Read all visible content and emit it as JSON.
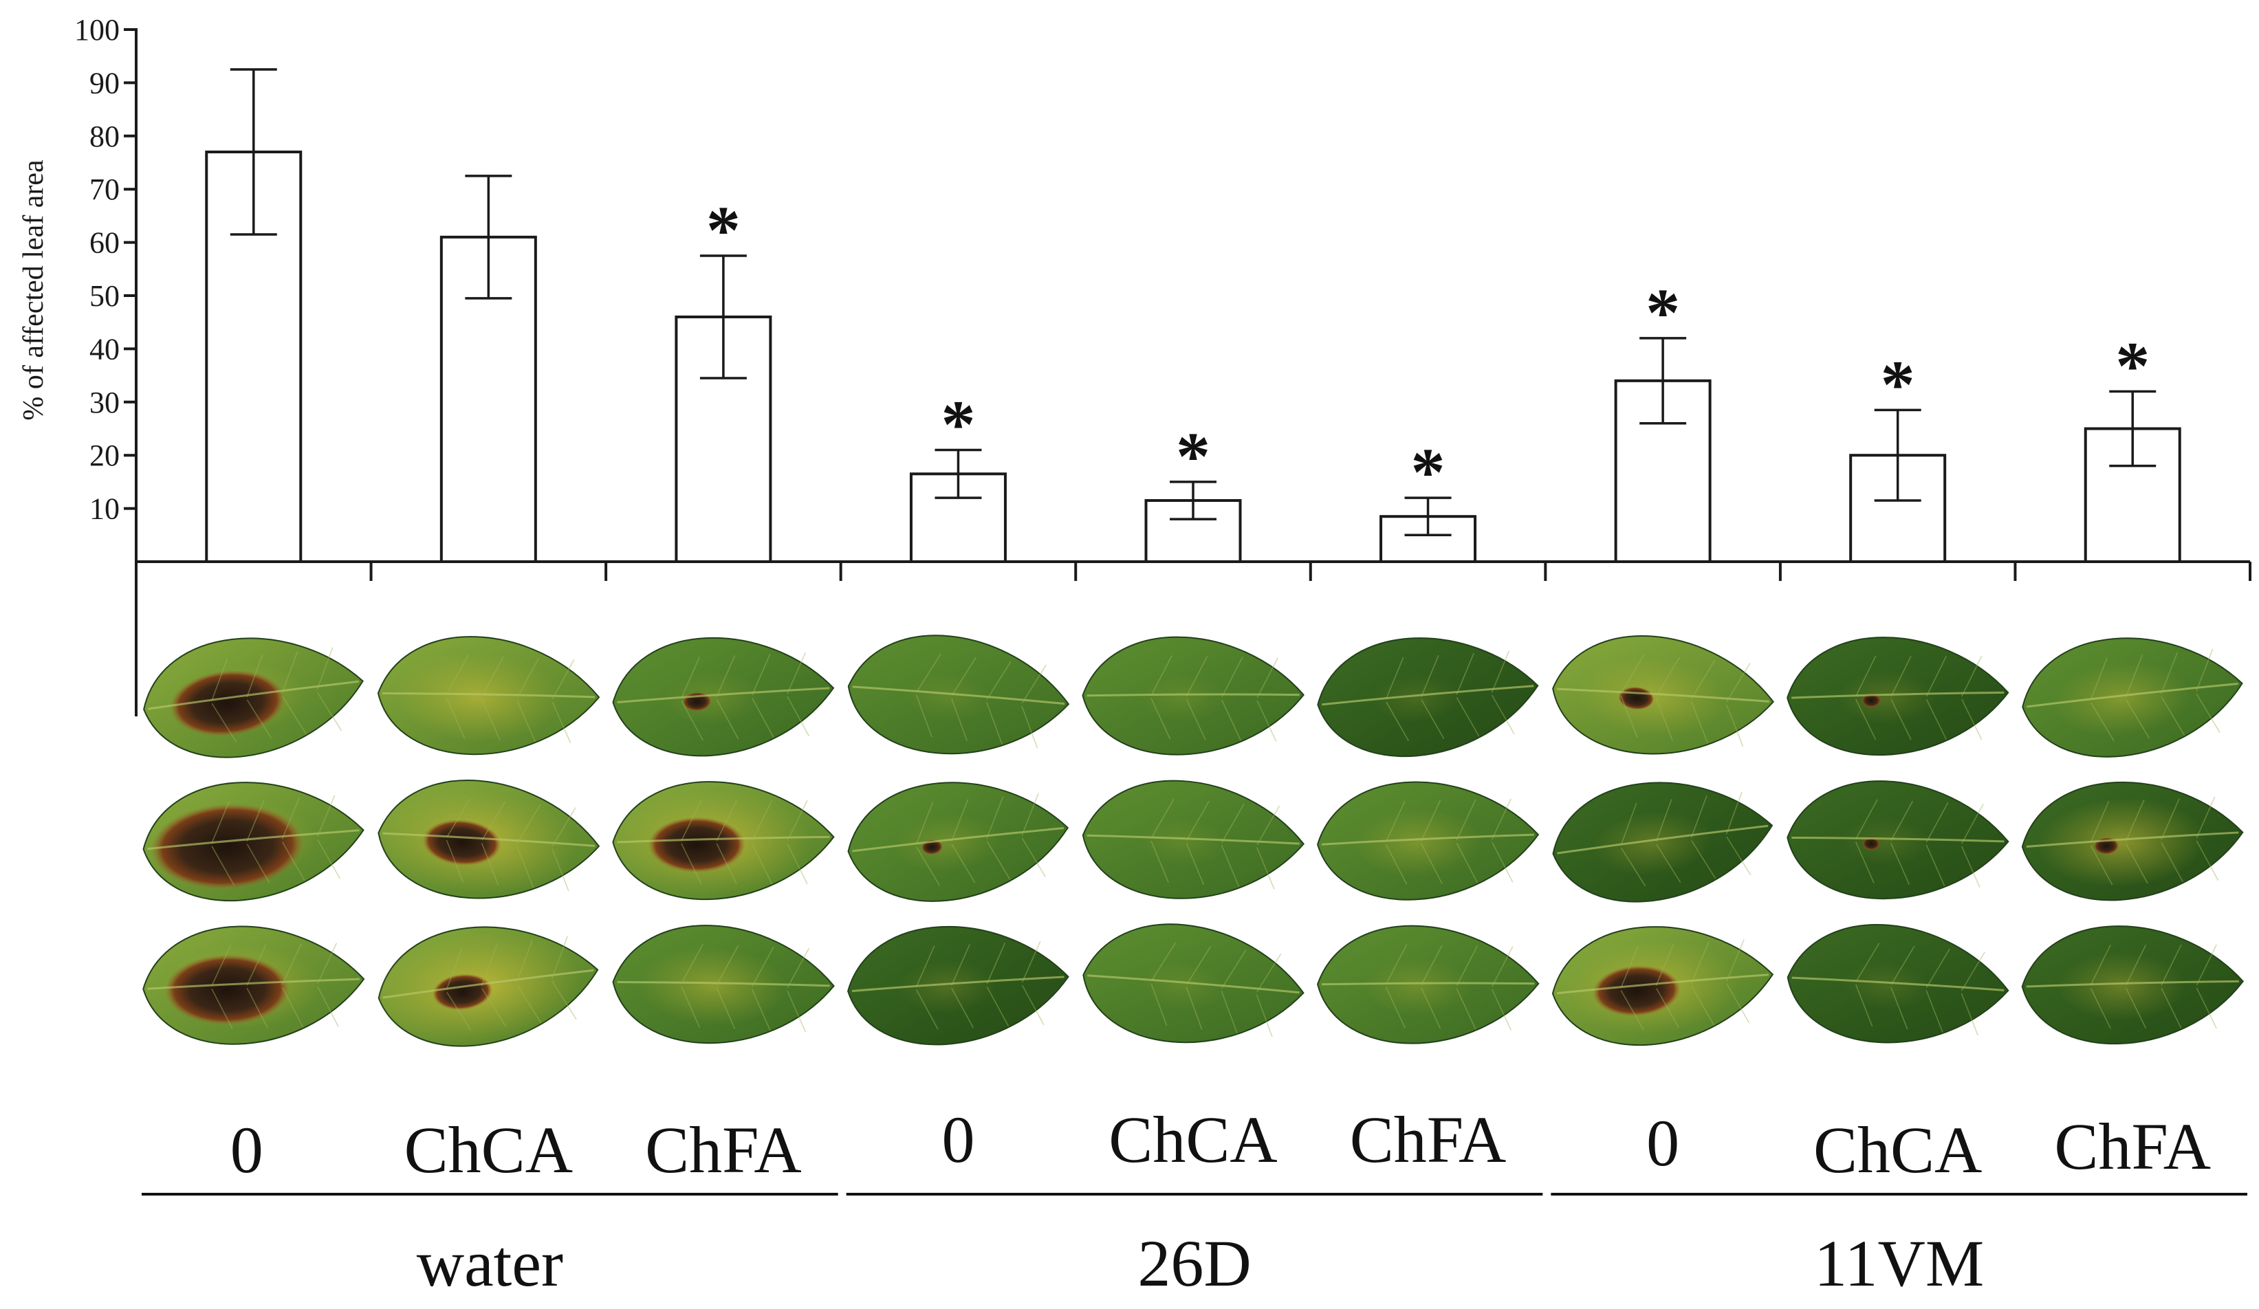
{
  "chart_data": {
    "type": "bar",
    "ylabel": "% of affected leaf area",
    "ylim": [
      0,
      100
    ],
    "yticks": [
      10,
      20,
      30,
      40,
      50,
      60,
      70,
      80,
      90,
      100
    ],
    "categories": [
      "0",
      "ChCA",
      "ChFA",
      "0",
      "ChCA",
      "ChFA",
      "0",
      "ChCA",
      "ChFA"
    ],
    "groups": [
      {
        "label": "water",
        "start": 0,
        "end": 2
      },
      {
        "label": "26D",
        "start": 3,
        "end": 5
      },
      {
        "label": "11VM",
        "start": 6,
        "end": 8
      }
    ],
    "values": [
      77,
      61,
      46,
      16.5,
      11.5,
      8.5,
      34,
      20,
      25
    ],
    "errors": [
      15.5,
      11.5,
      11.5,
      4.5,
      3.5,
      3.5,
      8,
      8.5,
      7
    ],
    "significance": [
      "",
      "",
      "*",
      "*",
      "*",
      "*",
      "*",
      "*",
      "*"
    ]
  },
  "photo_panel": {
    "rows": 3,
    "leaves": [
      {
        "col": 0,
        "row": 0,
        "lesion": 0.55,
        "yellow": 0.25,
        "tone": "light"
      },
      {
        "col": 0,
        "row": 1,
        "lesion": 0.75,
        "yellow": 0.35,
        "tone": "light"
      },
      {
        "col": 0,
        "row": 2,
        "lesion": 0.6,
        "yellow": 0.4,
        "tone": "light"
      },
      {
        "col": 1,
        "row": 0,
        "lesion": 0.0,
        "yellow": 0.45,
        "tone": "light"
      },
      {
        "col": 1,
        "row": 1,
        "lesion": 0.35,
        "yellow": 0.6,
        "tone": "light"
      },
      {
        "col": 1,
        "row": 2,
        "lesion": 0.25,
        "yellow": 0.65,
        "tone": "light"
      },
      {
        "col": 2,
        "row": 0,
        "lesion": 0.08,
        "yellow": 0.1,
        "tone": "mid"
      },
      {
        "col": 2,
        "row": 1,
        "lesion": 0.45,
        "yellow": 0.6,
        "tone": "light"
      },
      {
        "col": 2,
        "row": 2,
        "lesion": 0.0,
        "yellow": 0.35,
        "tone": "mid"
      },
      {
        "col": 3,
        "row": 0,
        "lesion": 0.0,
        "yellow": 0.05,
        "tone": "mid"
      },
      {
        "col": 3,
        "row": 1,
        "lesion": 0.04,
        "yellow": 0.15,
        "tone": "mid"
      },
      {
        "col": 3,
        "row": 2,
        "lesion": 0.0,
        "yellow": 0.1,
        "tone": "dark"
      },
      {
        "col": 4,
        "row": 0,
        "lesion": 0.0,
        "yellow": 0.05,
        "tone": "mid"
      },
      {
        "col": 4,
        "row": 1,
        "lesion": 0.0,
        "yellow": 0.05,
        "tone": "mid"
      },
      {
        "col": 4,
        "row": 2,
        "lesion": 0.0,
        "yellow": 0.05,
        "tone": "mid"
      },
      {
        "col": 5,
        "row": 0,
        "lesion": 0.0,
        "yellow": 0.05,
        "tone": "dark"
      },
      {
        "col": 5,
        "row": 1,
        "lesion": 0.0,
        "yellow": 0.25,
        "tone": "mid"
      },
      {
        "col": 5,
        "row": 2,
        "lesion": 0.0,
        "yellow": 0.15,
        "tone": "mid"
      },
      {
        "col": 6,
        "row": 0,
        "lesion": 0.12,
        "yellow": 0.35,
        "tone": "light"
      },
      {
        "col": 6,
        "row": 1,
        "lesion": 0.0,
        "yellow": 0.2,
        "tone": "dark"
      },
      {
        "col": 6,
        "row": 2,
        "lesion": 0.4,
        "yellow": 0.5,
        "tone": "light"
      },
      {
        "col": 7,
        "row": 0,
        "lesion": 0.03,
        "yellow": 0.1,
        "tone": "dark"
      },
      {
        "col": 7,
        "row": 1,
        "lesion": 0.02,
        "yellow": 0.05,
        "tone": "dark"
      },
      {
        "col": 7,
        "row": 2,
        "lesion": 0.0,
        "yellow": 0.05,
        "tone": "dark"
      },
      {
        "col": 8,
        "row": 0,
        "lesion": 0.0,
        "yellow": 0.3,
        "tone": "mid"
      },
      {
        "col": 8,
        "row": 1,
        "lesion": 0.06,
        "yellow": 0.45,
        "tone": "dark"
      },
      {
        "col": 8,
        "row": 2,
        "lesion": 0.0,
        "yellow": 0.25,
        "tone": "dark"
      }
    ]
  },
  "colors": {
    "axis": "#1a1a1a",
    "bar_fill": "#ffffff",
    "leaf_dark": "#2f5a1e",
    "leaf_mid": "#4d7d2a",
    "leaf_light": "#6f9a36",
    "yellow": "#c8b431",
    "lesion": "#2b1d14",
    "rim": "#8a4a1c"
  }
}
